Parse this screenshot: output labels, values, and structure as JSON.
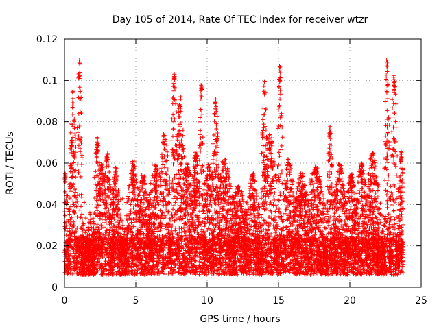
{
  "chart_data": {
    "type": "scatter",
    "title": "Day 105 of 2014, Rate Of TEC Index for receiver wtzr",
    "xlabel": "GPS time / hours",
    "ylabel": "ROTI / TECUs",
    "xlim": [
      0,
      25
    ],
    "ylim": [
      0,
      0.12
    ],
    "x_ticks": [
      0,
      5,
      10,
      15,
      20,
      25
    ],
    "x_tick_labels": [
      "0",
      "5",
      "10",
      "15",
      "20",
      "25"
    ],
    "y_ticks": [
      0,
      0.02,
      0.04,
      0.06,
      0.08,
      0.1,
      0.12
    ],
    "y_tick_labels": [
      "0",
      "0.02",
      "0.04",
      "0.06",
      "0.08",
      "0.1",
      "0.12"
    ],
    "grid": true,
    "marker": "+",
    "marker_color": "#ff0000",
    "x_data_range": [
      0,
      23.75
    ],
    "baseline_range": [
      0.006,
      0.024
    ],
    "seed": 105,
    "density_per_hour": 380,
    "peaks": [
      {
        "x": 1.05,
        "y": 0.11,
        "width": 0.12
      },
      {
        "x": 0.6,
        "y": 0.095,
        "width": 0.15
      },
      {
        "x": 0.05,
        "y": 0.055,
        "width": 0.1
      },
      {
        "x": 0.55,
        "y": 0.073,
        "width": 0.15
      },
      {
        "x": 2.3,
        "y": 0.073,
        "width": 0.15
      },
      {
        "x": 2.6,
        "y": 0.06,
        "width": 0.25
      },
      {
        "x": 3.0,
        "y": 0.065,
        "width": 0.2
      },
      {
        "x": 3.6,
        "y": 0.058,
        "width": 0.2
      },
      {
        "x": 4.8,
        "y": 0.061,
        "width": 0.3
      },
      {
        "x": 5.5,
        "y": 0.055,
        "width": 0.3
      },
      {
        "x": 6.4,
        "y": 0.06,
        "width": 0.35
      },
      {
        "x": 7.0,
        "y": 0.075,
        "width": 0.25
      },
      {
        "x": 7.7,
        "y": 0.104,
        "width": 0.15
      },
      {
        "x": 8.1,
        "y": 0.093,
        "width": 0.2
      },
      {
        "x": 8.6,
        "y": 0.06,
        "width": 0.3
      },
      {
        "x": 9.2,
        "y": 0.067,
        "width": 0.2
      },
      {
        "x": 9.6,
        "y": 0.1,
        "width": 0.1
      },
      {
        "x": 10.1,
        "y": 0.06,
        "width": 0.3
      },
      {
        "x": 10.6,
        "y": 0.092,
        "width": 0.15
      },
      {
        "x": 11.2,
        "y": 0.062,
        "width": 0.4
      },
      {
        "x": 12.2,
        "y": 0.05,
        "width": 0.4
      },
      {
        "x": 13.2,
        "y": 0.055,
        "width": 0.3
      },
      {
        "x": 14.0,
        "y": 0.1,
        "width": 0.15
      },
      {
        "x": 14.4,
        "y": 0.075,
        "width": 0.3
      },
      {
        "x": 15.1,
        "y": 0.107,
        "width": 0.12
      },
      {
        "x": 15.7,
        "y": 0.062,
        "width": 0.3
      },
      {
        "x": 16.6,
        "y": 0.055,
        "width": 0.35
      },
      {
        "x": 17.6,
        "y": 0.06,
        "width": 0.4
      },
      {
        "x": 18.6,
        "y": 0.078,
        "width": 0.15
      },
      {
        "x": 19.3,
        "y": 0.06,
        "width": 0.3
      },
      {
        "x": 20.1,
        "y": 0.055,
        "width": 0.3
      },
      {
        "x": 20.8,
        "y": 0.06,
        "width": 0.3
      },
      {
        "x": 21.6,
        "y": 0.065,
        "width": 0.3
      },
      {
        "x": 22.6,
        "y": 0.112,
        "width": 0.12
      },
      {
        "x": 23.1,
        "y": 0.103,
        "width": 0.15
      },
      {
        "x": 23.6,
        "y": 0.066,
        "width": 0.15
      }
    ]
  }
}
